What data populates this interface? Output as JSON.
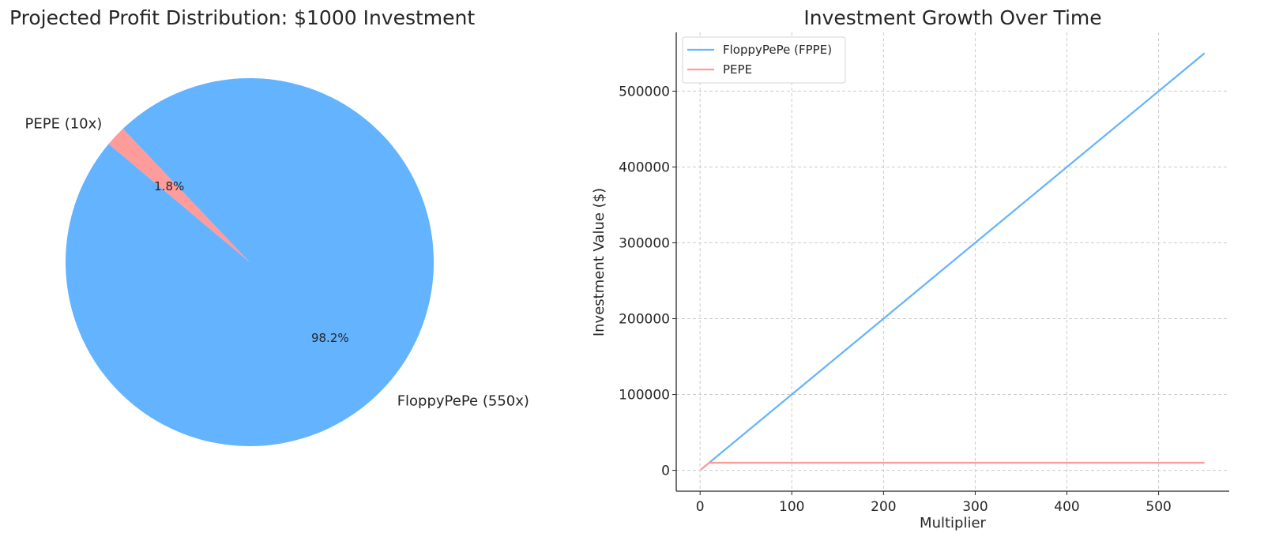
{
  "chart_data": [
    {
      "type": "pie",
      "title": "Projected Profit Distribution: $1000 Investment",
      "slices": [
        {
          "label": "FloppyPePe (550x)",
          "value": 98.2,
          "pct_label": "98.2%",
          "color": "#64b3fe"
        },
        {
          "label": "PEPE (10x)",
          "value": 1.8,
          "pct_label": "1.8%",
          "color": "#fe9b9b"
        }
      ],
      "start_angle_deg": 140,
      "direction": "counterclockwise"
    },
    {
      "type": "line",
      "title": "Investment Growth Over Time",
      "xlabel": "Multiplier",
      "ylabel": "Investment Value ($)",
      "xlim": [
        -26,
        577
      ],
      "ylim": [
        -27500,
        577500
      ],
      "xticks": [
        0,
        100,
        200,
        300,
        400,
        500
      ],
      "yticks": [
        0,
        100000,
        200000,
        300000,
        400000,
        500000
      ],
      "grid": true,
      "legend": "top-left",
      "series": [
        {
          "name": "FloppyPePe (FPPE)",
          "color": "#64b3fe",
          "x": [
            1,
            550
          ],
          "y": [
            1000,
            550000
          ]
        },
        {
          "name": "PEPE",
          "color": "#fe9b9b",
          "x": [
            1,
            10,
            550
          ],
          "y": [
            1000,
            10000,
            10000
          ]
        }
      ]
    }
  ]
}
